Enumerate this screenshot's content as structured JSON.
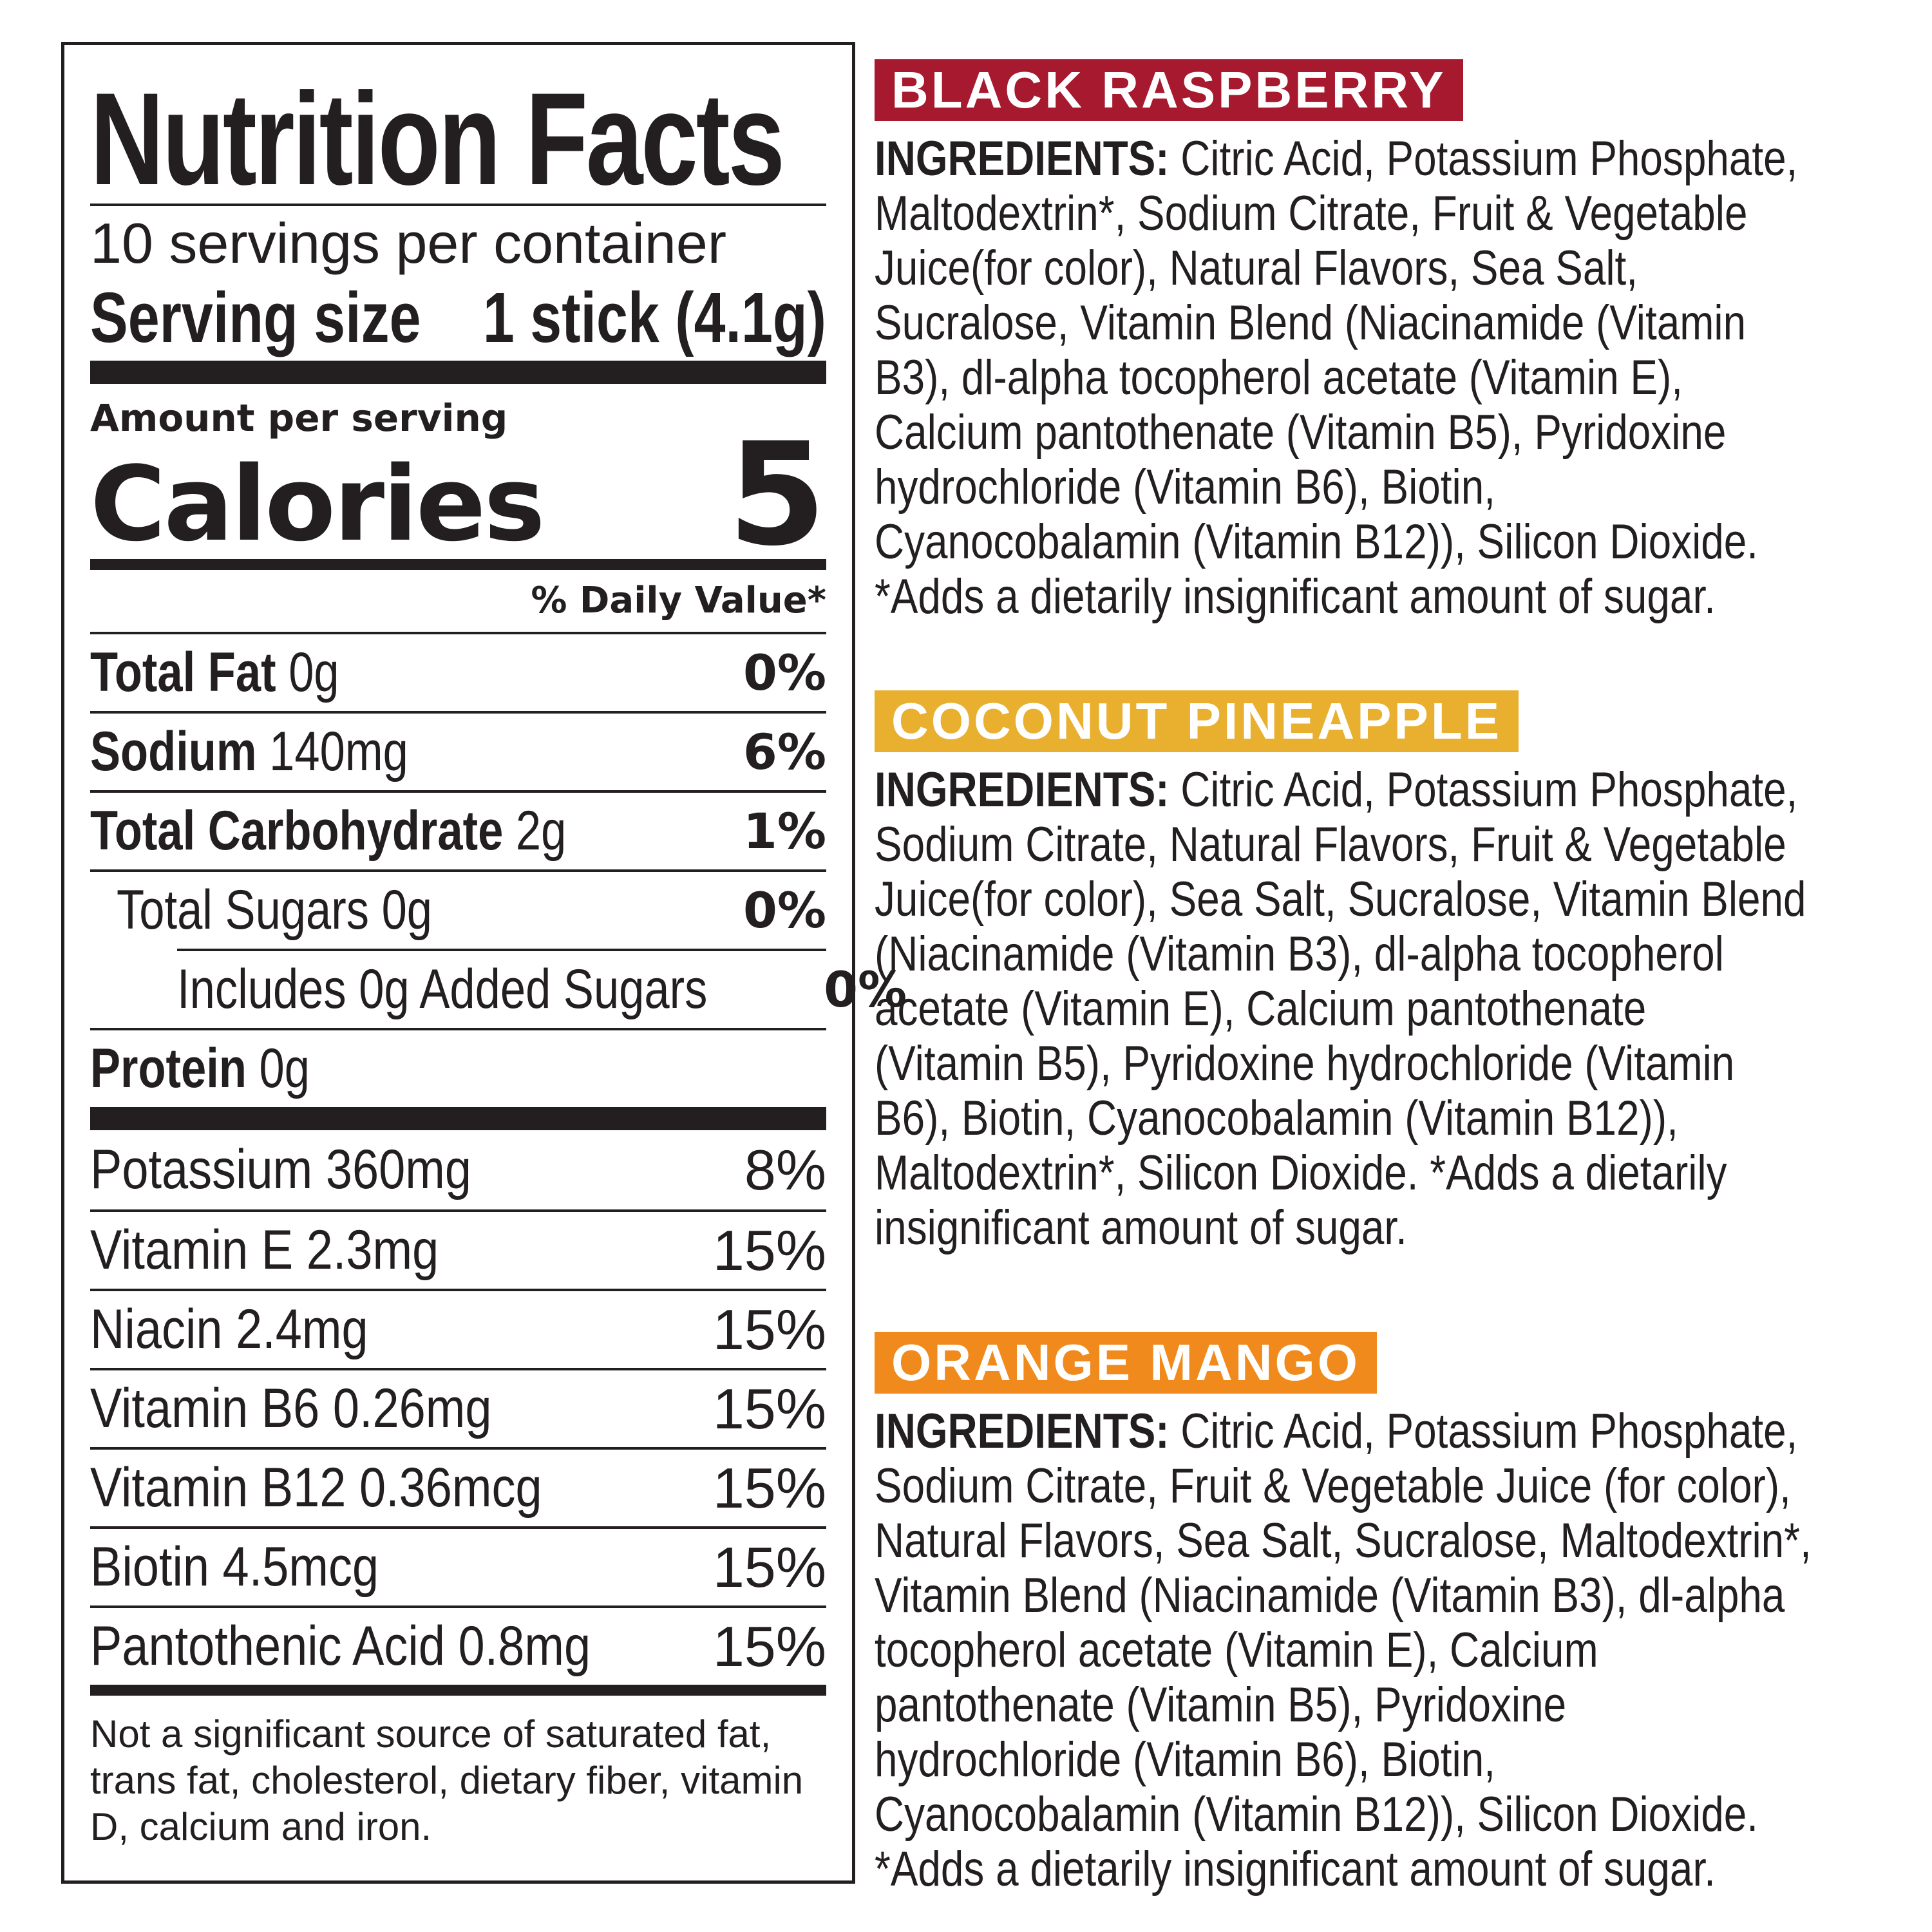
{
  "nutrition": {
    "title": "Nutrition Facts",
    "servings_per_container": "10 servings per container",
    "serving_size_label": "Serving size",
    "serving_size_value": "1 stick (4.1g)",
    "amount_per_serving": "Amount per serving",
    "calories_label": "Calories",
    "calories_value": "5",
    "daily_value_header": "% Daily Value*",
    "nutrients": [
      {
        "name": "Total Fat",
        "amount": "0g",
        "dv": "0%"
      },
      {
        "name": "Sodium",
        "amount": "140mg",
        "dv": "6%"
      },
      {
        "name": "Total Carbohydrate",
        "amount": "2g",
        "dv": "1%"
      },
      {
        "name": "Total Sugars 0g",
        "dv": "0%"
      },
      {
        "name": "Includes 0g Added Sugars",
        "dv": "0%"
      },
      {
        "name": "Protein",
        "amount": "0g"
      }
    ],
    "vitamins": [
      {
        "name": "Potassium 360mg",
        "dv": "8%"
      },
      {
        "name": "Vitamin E 2.3mg",
        "dv": "15%"
      },
      {
        "name": "Niacin 2.4mg",
        "dv": "15%"
      },
      {
        "name": "Vitamin B6 0.26mg",
        "dv": "15%"
      },
      {
        "name": "Vitamin B12 0.36mcg",
        "dv": "15%"
      },
      {
        "name": "Biotin 4.5mcg",
        "dv": "15%"
      },
      {
        "name": "Pantothenic Acid 0.8mg",
        "dv": "15%"
      }
    ],
    "footnote": "Not a significant source of saturated fat, trans fat, cholesterol, dietary fiber, vitamin D, calcium and iron."
  },
  "flavors": [
    {
      "name": "BLACK RASPBERRY",
      "color": "#a6192e",
      "label": "INGREDIENTS:",
      "text": " Citric Acid, Potassium Phosphate,\nMaltodextrin*, Sodium Citrate, Fruit & Vegetable\nJuice(for color), Natural Flavors, Sea Salt,\nSucralose, Vitamin Blend (Niacinamide (Vitamin\nB3), dl-alpha tocopherol acetate (Vitamin E),\nCalcium pantothenate (Vitamin B5), Pyridoxine\nhydrochloride (Vitamin B6), Biotin,\nCyanocobalamin (Vitamin B12)), Silicon Dioxide.",
      "note": "\n*Adds a dietarily insignificant amount of sugar."
    },
    {
      "name": "COCONUT PINEAPPLE",
      "color": "#e8b02e",
      "label": "INGREDIENTS:",
      "text": " Citric Acid, Potassium Phosphate,\nSodium Citrate, Natural Flavors, Fruit & Vegetable\nJuice(for color), Sea Salt, Sucralose, Vitamin Blend\n(Niacinamide (Vitamin B3), dl-alpha tocopherol\nacetate (Vitamin E), Calcium pantothenate\n(Vitamin B5), Pyridoxine hydrochloride (Vitamin\nB6), Biotin, Cyanocobalamin (Vitamin B12)),\nMaltodextrin*, Silicon Dioxide.",
      "note": "  *Adds a dietarily\ninsignificant amount of sugar."
    },
    {
      "name": "ORANGE MANGO",
      "color": "#f08a1c",
      "label": "INGREDIENTS:",
      "text": " Citric Acid, Potassium Phosphate,\nSodium Citrate, Fruit & Vegetable Juice (for color),\nNatural Flavors, Sea Salt, Sucralose, Maltodextrin*,\nVitamin Blend (Niacinamide (Vitamin B3), dl-alpha\ntocopherol acetate (Vitamin E), Calcium\npantothenate (Vitamin B5), Pyridoxine\nhydrochloride (Vitamin B6), Biotin,\nCyanocobalamin (Vitamin B12)), Silicon Dioxide.",
      "note": "\n*Adds a dietarily insignificant amount of sugar."
    }
  ]
}
